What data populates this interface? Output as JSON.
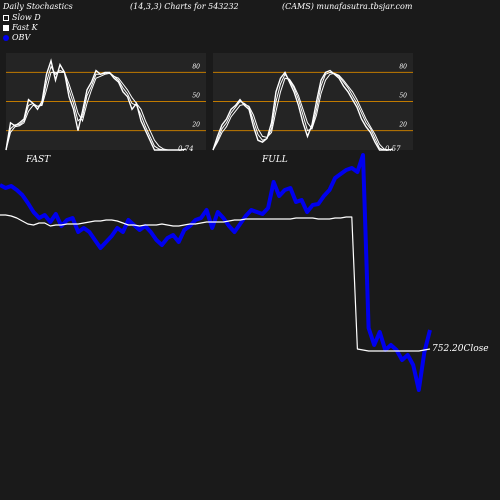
{
  "header": {
    "title": "Daily Stochastics",
    "params": "(14,3,3) Charts for 543232",
    "site": "(CAMS) munafasutra.tbsjar.com"
  },
  "legend": {
    "slow": "Slow  D",
    "fast": "Fast K",
    "obv": "OBV"
  },
  "colors": {
    "background": "#1a1a1a",
    "panel": "#242424",
    "level_line": "#c07a00",
    "stoch_line": "#ffffff",
    "obv": "#0000ee",
    "close": "#ffffff"
  },
  "chart_data": [
    {
      "type": "line",
      "title": "FAST",
      "ylim": [
        0,
        100
      ],
      "levels": [
        20,
        50,
        80
      ],
      "level_labels": [
        "20",
        "50",
        "80"
      ],
      "last_value_label": "0.74",
      "series": [
        {
          "values": [
            0,
            28,
            25,
            28,
            32,
            52,
            48,
            42,
            50,
            78,
            92,
            72,
            88,
            80,
            55,
            42,
            20,
            40,
            62,
            70,
            82,
            78,
            80,
            80,
            74,
            70,
            60,
            55,
            42,
            48,
            30,
            20,
            10,
            0,
            0,
            0,
            0,
            0,
            0,
            0,
            1
          ]
        },
        {
          "values": [
            0,
            22,
            26,
            26,
            30,
            46,
            48,
            45,
            47,
            70,
            86,
            78,
            82,
            80,
            62,
            48,
            30,
            34,
            56,
            66,
            78,
            78,
            79,
            80,
            76,
            72,
            64,
            58,
            48,
            46,
            36,
            24,
            14,
            4,
            1,
            0,
            0,
            0,
            0,
            0,
            1
          ]
        },
        {
          "values": [
            0,
            18,
            24,
            25,
            28,
            40,
            46,
            45,
            46,
            62,
            80,
            80,
            80,
            80,
            68,
            54,
            38,
            30,
            48,
            62,
            74,
            76,
            78,
            79,
            76,
            74,
            68,
            62,
            54,
            48,
            42,
            30,
            20,
            10,
            4,
            1,
            0,
            0,
            0,
            0,
            1
          ]
        }
      ]
    },
    {
      "type": "line",
      "title": "FULL",
      "ylim": [
        0,
        100
      ],
      "levels": [
        20,
        50,
        80
      ],
      "level_labels": [
        "20",
        "50",
        "80"
      ],
      "last_value_label": "0.57",
      "series": [
        {
          "values": [
            0,
            14,
            26,
            32,
            42,
            46,
            52,
            46,
            42,
            24,
            10,
            8,
            12,
            28,
            60,
            74,
            80,
            70,
            60,
            46,
            28,
            14,
            26,
            50,
            72,
            80,
            82,
            78,
            74,
            66,
            60,
            52,
            44,
            32,
            24,
            18,
            8,
            0,
            0,
            0,
            1
          ]
        },
        {
          "values": [
            0,
            10,
            22,
            28,
            38,
            44,
            50,
            48,
            44,
            30,
            16,
            10,
            12,
            22,
            50,
            68,
            78,
            72,
            64,
            52,
            36,
            20,
            22,
            42,
            66,
            78,
            80,
            79,
            76,
            70,
            64,
            56,
            48,
            38,
            28,
            22,
            12,
            2,
            0,
            0,
            1
          ]
        },
        {
          "values": [
            0,
            8,
            18,
            24,
            34,
            40,
            46,
            47,
            45,
            36,
            22,
            14,
            13,
            18,
            40,
            60,
            74,
            73,
            66,
            56,
            42,
            28,
            22,
            36,
            58,
            72,
            78,
            79,
            77,
            72,
            66,
            60,
            52,
            42,
            32,
            24,
            16,
            6,
            1,
            0,
            1
          ]
        }
      ]
    },
    {
      "type": "line",
      "title": "",
      "last_value_label": "752.20Close",
      "series": [
        {
          "name": "OBV",
          "values": [
            185,
            188,
            186,
            190,
            195,
            203,
            212,
            218,
            215,
            222,
            214,
            226,
            220,
            218,
            232,
            228,
            232,
            240,
            248,
            242,
            236,
            228,
            232,
            220,
            225,
            230,
            226,
            232,
            240,
            245,
            238,
            235,
            242,
            230,
            226,
            220,
            218,
            210,
            228,
            212,
            218,
            226,
            232,
            224,
            216,
            210,
            212,
            214,
            208,
            182,
            196,
            190,
            188,
            202,
            200,
            212,
            205,
            204,
            196,
            190,
            178,
            174,
            170,
            168,
            172,
            155,
            328,
            345,
            332,
            350,
            345,
            350,
            360,
            355,
            365,
            390,
            352,
            330
          ]
        },
        {
          "name": "Close",
          "values": [
            215,
            215,
            216,
            218,
            221,
            224,
            225,
            223,
            223,
            226,
            225,
            225,
            224,
            224,
            224,
            223,
            222,
            221,
            221,
            220,
            220,
            221,
            223,
            225,
            225,
            226,
            225,
            225,
            225,
            224,
            225,
            226,
            226,
            225,
            224,
            224,
            223,
            222,
            222,
            222,
            222,
            221,
            220,
            220,
            219,
            219,
            219,
            219,
            219,
            219,
            219,
            219,
            219,
            218,
            218,
            218,
            218,
            219,
            219,
            219,
            218,
            218,
            217,
            217,
            349,
            350,
            351,
            351,
            351,
            351,
            351,
            351,
            351,
            351,
            351,
            351,
            350,
            349
          ]
        }
      ]
    }
  ]
}
